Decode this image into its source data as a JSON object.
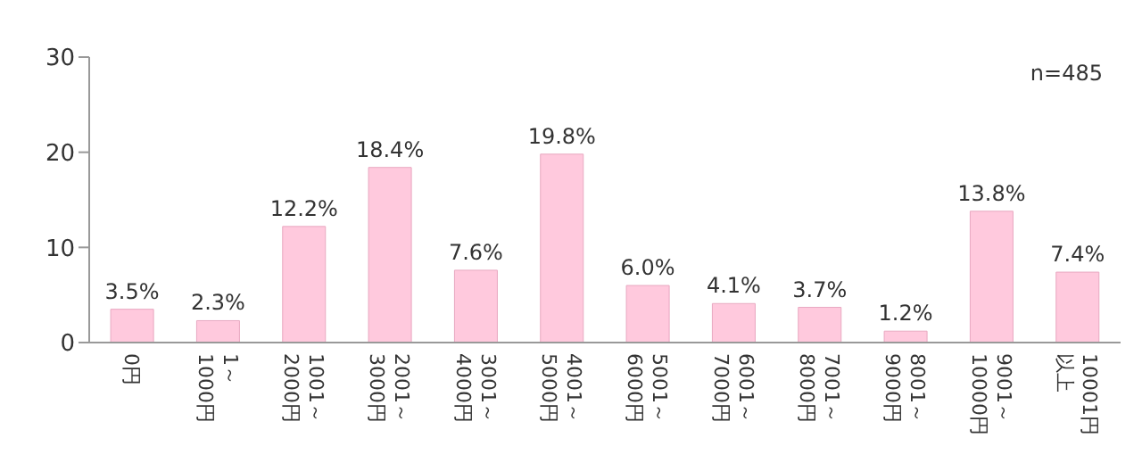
{
  "chart_data": {
    "type": "bar",
    "categories": [
      "0円",
      "1～\n1000円",
      "1001～\n2000円",
      "2001～\n3000円",
      "3001～\n4000円",
      "4001～\n5000円",
      "5001～\n6000円",
      "6001～\n7000円",
      "7001～\n8000円",
      "8001～\n9000円",
      "9001～\n10000円",
      "10001円以上"
    ],
    "values": [
      3.5,
      2.3,
      12.2,
      18.4,
      7.6,
      19.8,
      6.0,
      4.1,
      3.7,
      1.2,
      13.8,
      7.4
    ],
    "value_labels": [
      "3.5%",
      "2.3%",
      "12.2%",
      "18.4%",
      "7.6%",
      "19.8%",
      "6.0%",
      "4.1%",
      "3.7%",
      "1.2%",
      "13.8%",
      "7.4%"
    ],
    "color": "#ffc9dd",
    "ylim": [
      0,
      30
    ],
    "yticks": [
      0,
      10,
      20,
      30
    ],
    "grid": false,
    "legend": false,
    "annotations": [
      "n=485"
    ]
  }
}
